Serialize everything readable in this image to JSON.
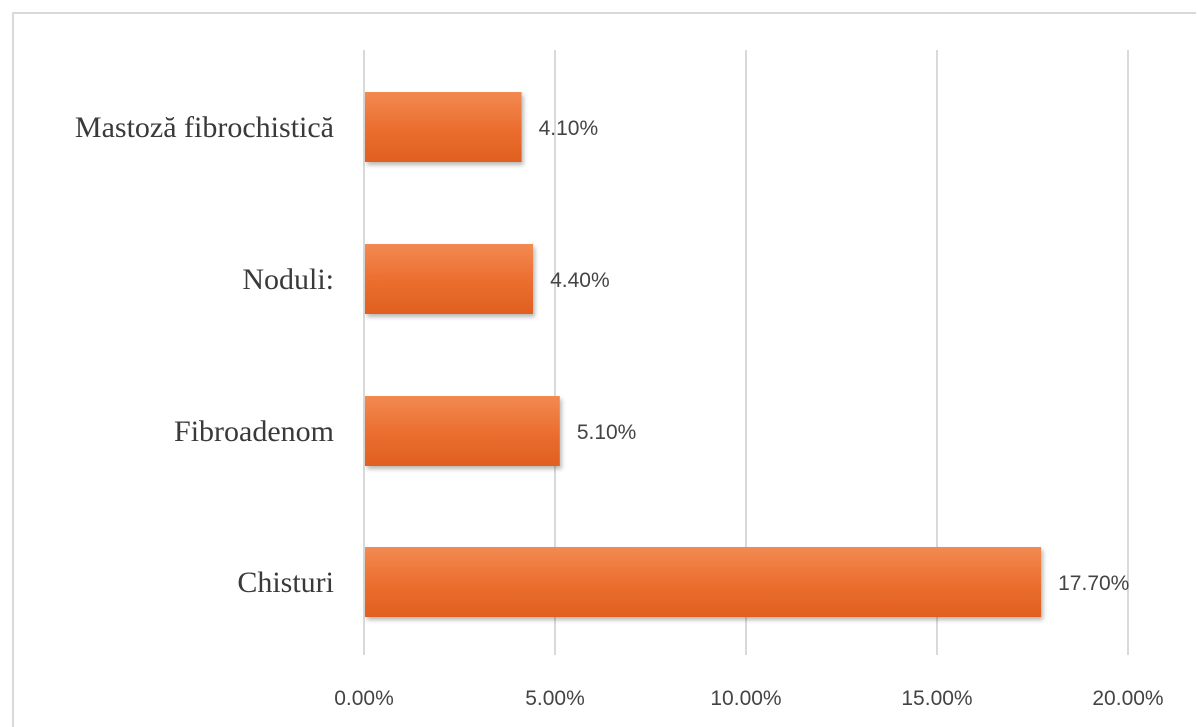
{
  "chart_data": {
    "type": "bar",
    "orientation": "horizontal",
    "categories": [
      "Mastoză fibrochistică",
      "Noduli:",
      "Fibroadenom",
      "Chisturi"
    ],
    "values": [
      4.1,
      4.4,
      5.1,
      17.7
    ],
    "data_labels": [
      "4.10%",
      "4.40%",
      "5.10%",
      "17.70%"
    ],
    "x_ticks": [
      0,
      5,
      10,
      15,
      20
    ],
    "x_tick_labels": [
      "0.00%",
      "5.00%",
      "10.00%",
      "15.00%",
      "20.00%"
    ],
    "xlim": [
      0,
      20
    ],
    "grid": true,
    "legend": false,
    "bar_color": "#e8692a",
    "bar_color_light": "#f07c43",
    "gridline_color": "#d9d9d9"
  }
}
